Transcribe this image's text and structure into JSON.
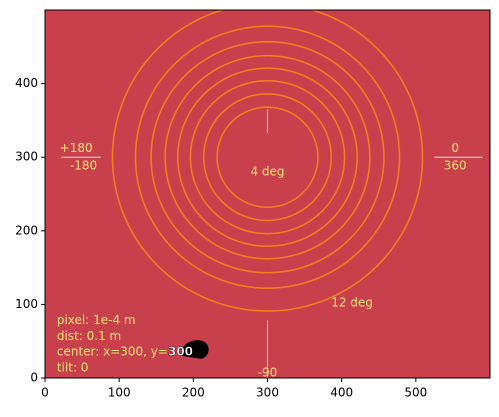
{
  "chart_data": {
    "type": "rings",
    "background": "#c8404b",
    "ring_color": "#f07d1e",
    "annotation_color": "#f5e27a",
    "center": [
      300,
      300
    ],
    "radii": [
      68,
      86,
      104,
      121,
      138,
      157,
      178,
      209
    ],
    "xlim": [
      0,
      600
    ],
    "ylim": [
      0,
      500
    ],
    "xticks": [
      0,
      100,
      200,
      300,
      400,
      500
    ],
    "yticks": [
      0,
      100,
      200,
      300,
      400
    ],
    "annotations": [
      "+180",
      "-180",
      "0",
      "360",
      "4 deg",
      "12 deg",
      "-90"
    ],
    "info": [
      "pixel: 1e-4 m",
      "dist: 0.1 m",
      "center: x=300, y=",
      "tilt: 0"
    ],
    "center_label": "300"
  }
}
